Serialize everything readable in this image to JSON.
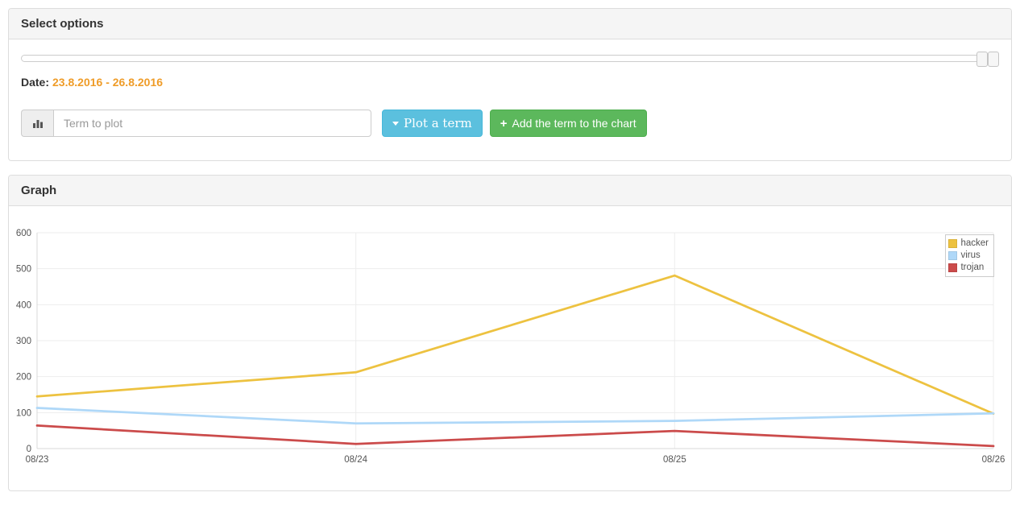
{
  "select_panel": {
    "title": "Select options",
    "date_label": "Date:",
    "date_value": "23.8.2016 - 26.8.2016",
    "term_input": {
      "placeholder": "Term to plot",
      "value": ""
    },
    "plot_button_label": "Plot a term",
    "add_button_label": "Add the term to the chart"
  },
  "graph_panel": {
    "title": "Graph"
  },
  "chart_data": {
    "type": "line",
    "x": [
      "08/23",
      "08/24",
      "08/25",
      "08/26"
    ],
    "series": [
      {
        "name": "hacker",
        "color": "#edc240",
        "values": [
          145,
          212,
          481,
          97
        ]
      },
      {
        "name": "virus",
        "color": "#afd8f8",
        "values": [
          113,
          70,
          77,
          98
        ]
      },
      {
        "name": "trojan",
        "color": "#cb4b4b",
        "values": [
          64,
          13,
          49,
          7
        ]
      }
    ],
    "ylim": [
      0,
      600
    ],
    "yticks": [
      0,
      100,
      200,
      300,
      400,
      500,
      600
    ],
    "grid": true,
    "legend_position": "top-right"
  },
  "colors": {
    "date_accent": "#ef9c28",
    "plot_button": "#5bc0de",
    "add_button": "#5cb85c",
    "panel_heading_bg": "#f5f5f5",
    "grid_line": "#ededed",
    "axis_line": "#d9d9d9",
    "tick_text": "#545454"
  }
}
